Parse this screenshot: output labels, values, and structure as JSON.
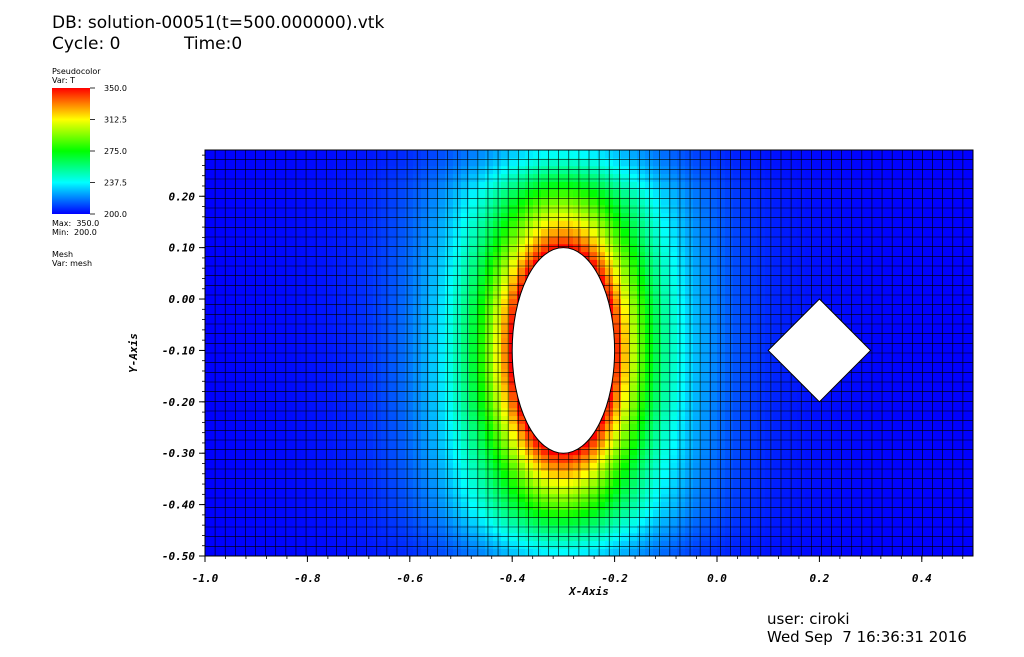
{
  "header": {
    "db_line": "DB: solution-00051(t=500.000000).vtk",
    "cycle_label": "Cycle: 0",
    "time_label": "Time:0"
  },
  "legend": {
    "plot1_title": "Pseudocolor",
    "plot1_var": "Var: T",
    "max_label": "Max:  350.0",
    "min_label": "Min:  200.0",
    "plot2_title": "Mesh",
    "plot2_var": "Var: mesh",
    "ticks": [
      "350.0",
      "312.5",
      "275.0",
      "237.5",
      "200.0"
    ]
  },
  "footer": {
    "user": "user: ciroki",
    "datetime": "Wed Sep  7 16:36:31 2016"
  },
  "colors": {
    "background": "#ffffff",
    "mesh_line": "#000000"
  },
  "chart_data": {
    "type": "heatmap",
    "title": "",
    "xlabel": "X-Axis",
    "ylabel": "Y-Axis",
    "xlim": [
      -1.0,
      0.5
    ],
    "ylim": [
      -0.5,
      0.29
    ],
    "x_ticks": [
      "-1.0",
      "-0.8",
      "-0.6",
      "-0.4",
      "-0.2",
      "0.0",
      "0.2",
      "0.4"
    ],
    "y_ticks": [
      "0.20",
      "0.10",
      "0.00",
      "-0.10",
      "-0.20",
      "-0.30",
      "-0.40",
      "-0.50"
    ],
    "x_tick_values": [
      -1.0,
      -0.8,
      -0.6,
      -0.4,
      -0.2,
      0.0,
      0.2,
      0.4
    ],
    "y_tick_values": [
      0.2,
      0.1,
      0.0,
      -0.1,
      -0.2,
      -0.3,
      -0.4,
      -0.5
    ],
    "variable": "T",
    "value_range": [
      200.0,
      350.0
    ],
    "colormap": "hot",
    "holes": [
      {
        "shape": "ellipse",
        "cx": -0.3,
        "cy": -0.1,
        "rx": 0.1,
        "ry": 0.2
      },
      {
        "shape": "diamond",
        "cx": 0.2,
        "cy": -0.1,
        "half_width": 0.1,
        "half_height": 0.1
      }
    ]
  }
}
